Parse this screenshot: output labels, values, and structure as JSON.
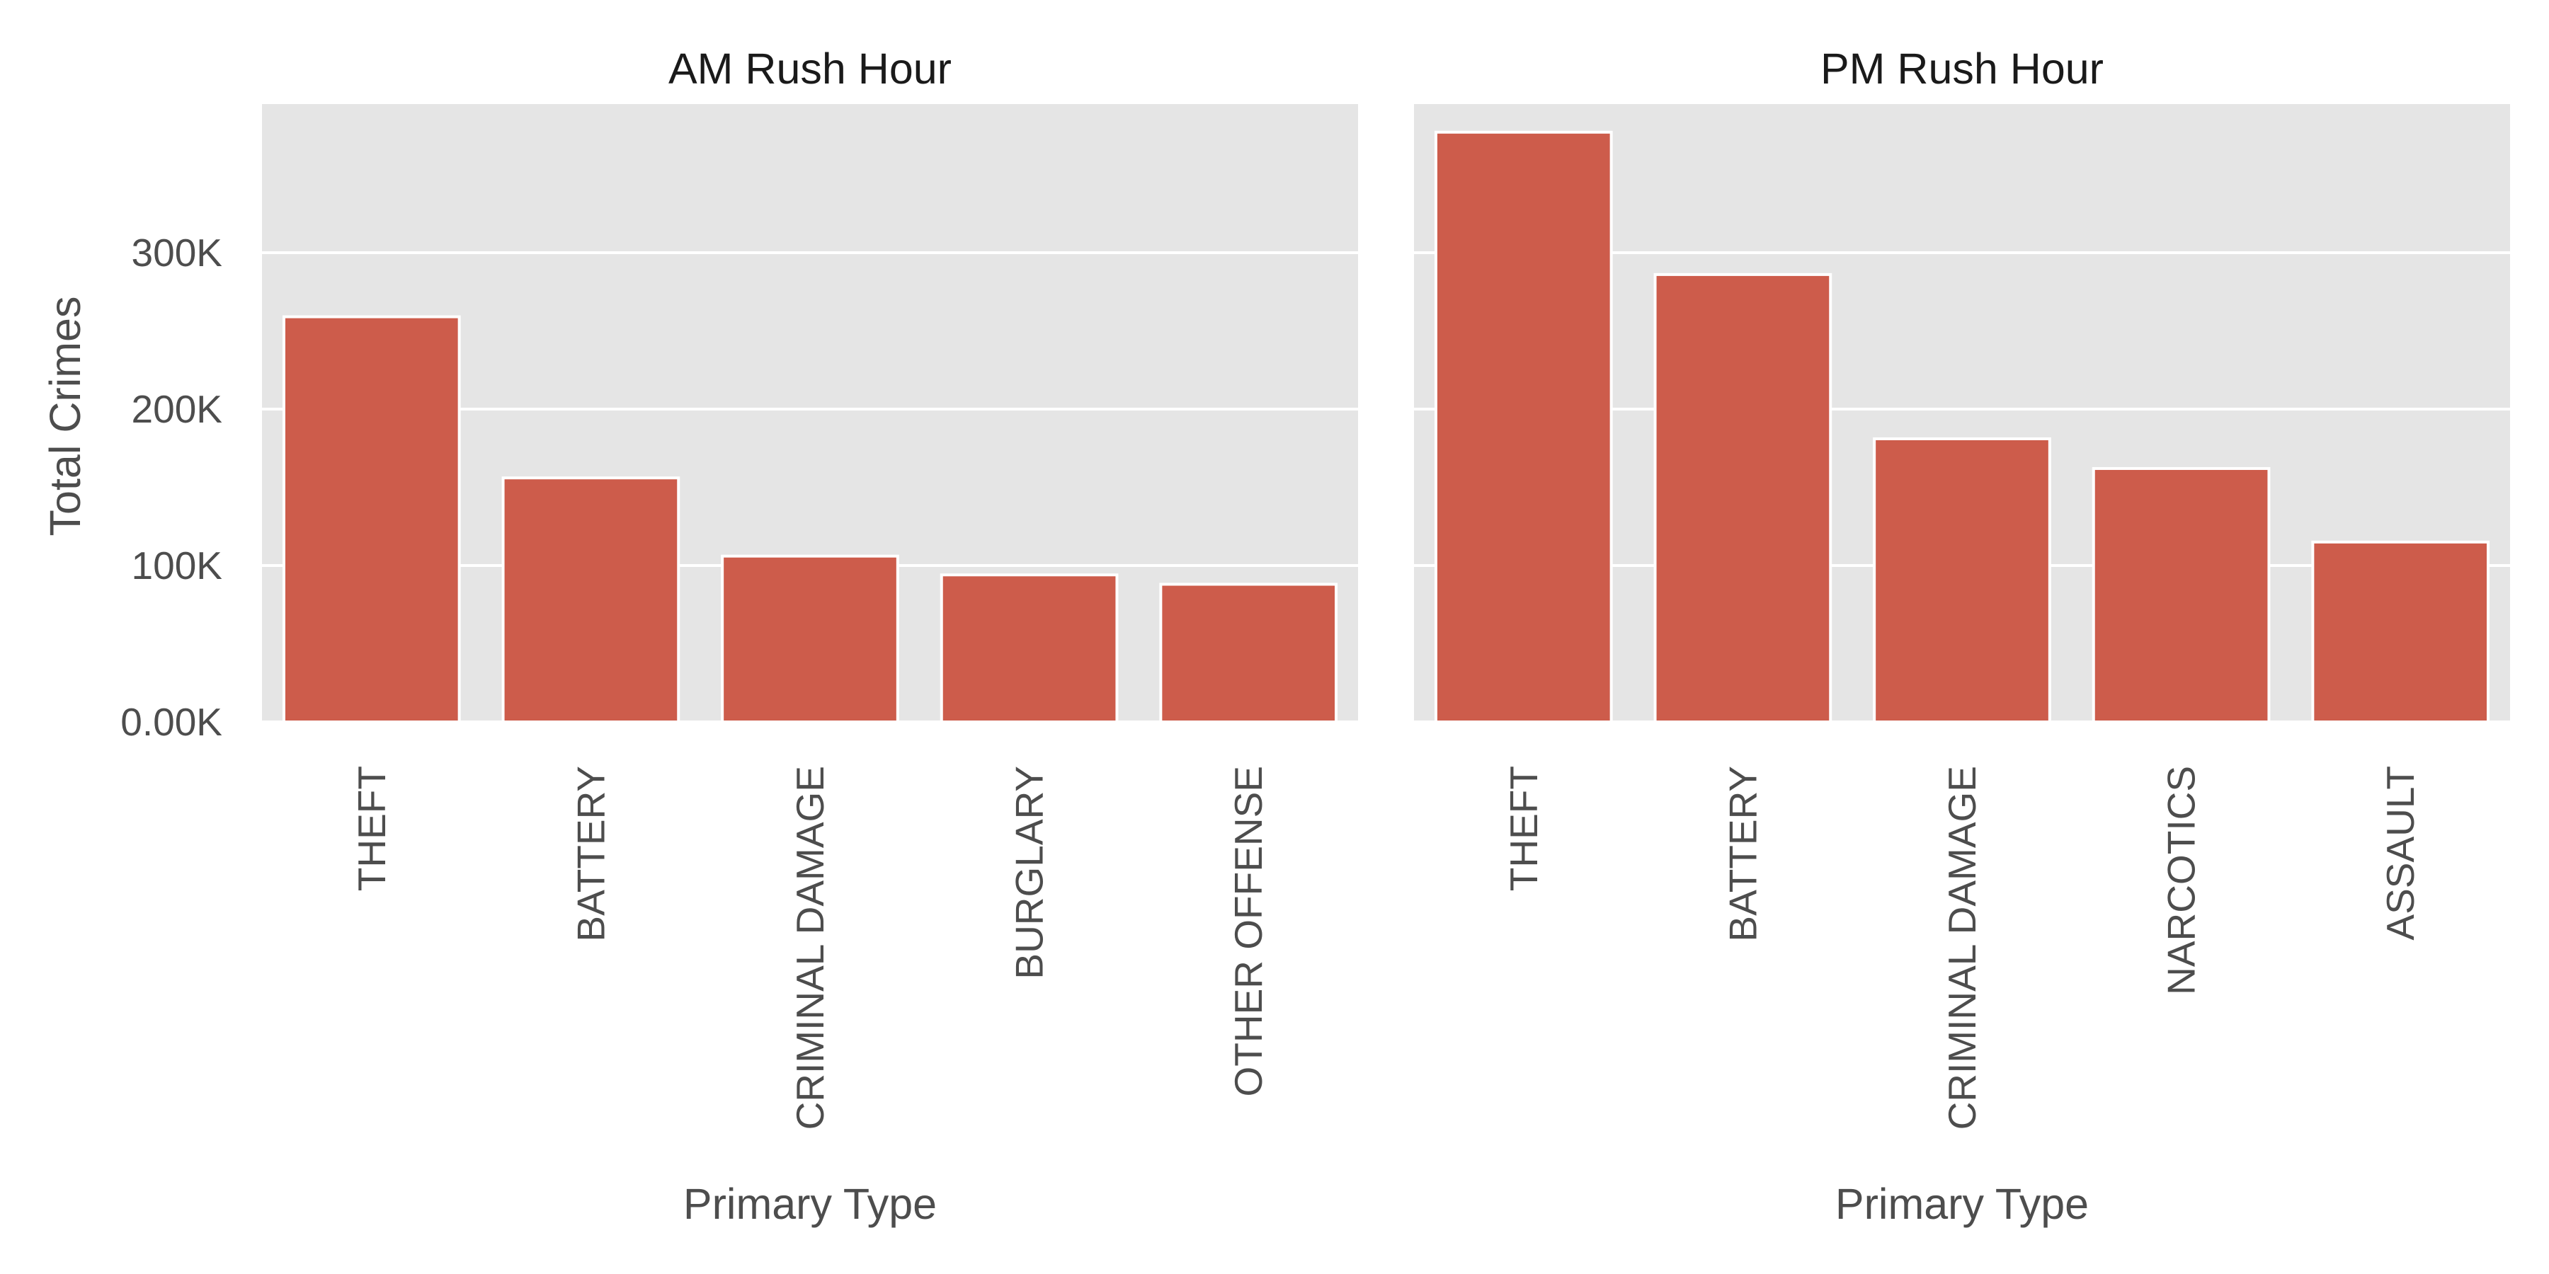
{
  "colors": {
    "bar": "#cd5c4b",
    "panel_bg": "#e5e5e5",
    "grid": "#ffffff",
    "text": "#4d4d4d",
    "title_text": "#1a1a1a"
  },
  "chart_data": {
    "type": "bar",
    "ylabel": "Total Crimes",
    "xlabel": "Primary Type",
    "ylim": [
      0,
      395000
    ],
    "yticks": [
      0,
      100000,
      200000,
      300000
    ],
    "ytick_labels": [
      "0.00K",
      "100K",
      "200K",
      "300K"
    ],
    "grid": true,
    "panels": [
      {
        "title": "AM Rush Hour",
        "xlabel": "Primary Type",
        "categories": [
          "THEFT",
          "BATTERY",
          "CRIMINAL DAMAGE",
          "BURGLARY",
          "OTHER OFFENSE"
        ],
        "values": [
          259000,
          156000,
          106000,
          94000,
          88000
        ]
      },
      {
        "title": "PM Rush Hour",
        "xlabel": "Primary Type",
        "categories": [
          "THEFT",
          "BATTERY",
          "CRIMINAL DAMAGE",
          "NARCOTICS",
          "ASSAULT"
        ],
        "values": [
          377000,
          286000,
          181000,
          162000,
          115000
        ]
      }
    ]
  }
}
